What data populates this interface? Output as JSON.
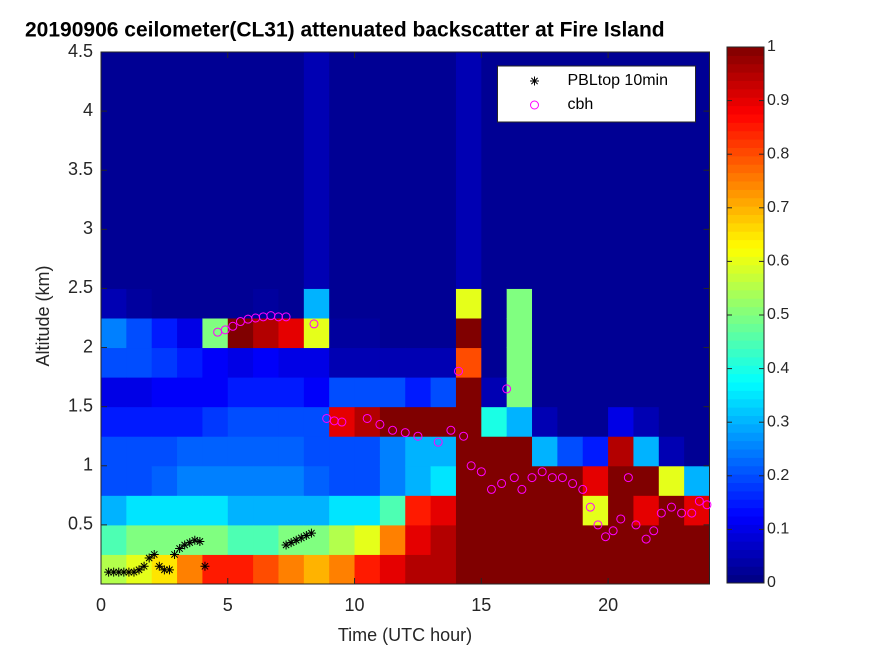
{
  "chart_data": {
    "type": "heatmap",
    "title": "20190906 ceilometer(CL31) attenuated backscatter at Fire Island",
    "x_label": "Time (UTC hour)",
    "y_label": "Altitude (km)",
    "xlim": [
      0,
      24
    ],
    "ylim": [
      0,
      4.5
    ],
    "xticks": [
      0,
      5,
      10,
      15,
      20
    ],
    "yticks": [
      0.5,
      1,
      1.5,
      2,
      2.5,
      3,
      3.5,
      4,
      4.5
    ],
    "colormap": "jet",
    "clim": [
      0,
      1
    ],
    "cticks": [
      0,
      0.1,
      0.2,
      0.3,
      0.4,
      0.5,
      0.6,
      0.7,
      0.8,
      0.9,
      1
    ],
    "x_edges": [
      0,
      1,
      2,
      3,
      4,
      5,
      6,
      7,
      8,
      9,
      10,
      11,
      12,
      13,
      14,
      15,
      16,
      17,
      18,
      19,
      20,
      21,
      22,
      23,
      24
    ],
    "y_edges": [
      0,
      0.25,
      0.5,
      0.75,
      1,
      1.25,
      1.5,
      1.75,
      2,
      2.25,
      2.5,
      4.5
    ],
    "z": [
      [
        0.55,
        0.45,
        0.3,
        0.2,
        0.2,
        0.15,
        0.1,
        0.2,
        0.25,
        0.05,
        0.02
      ],
      [
        0.6,
        0.5,
        0.35,
        0.2,
        0.2,
        0.15,
        0.1,
        0.2,
        0.2,
        0.03,
        0.02
      ],
      [
        0.65,
        0.5,
        0.35,
        0.22,
        0.2,
        0.15,
        0.12,
        0.18,
        0.15,
        0.02,
        0.02
      ],
      [
        0.75,
        0.5,
        0.35,
        0.25,
        0.22,
        0.15,
        0.12,
        0.15,
        0.1,
        0.02,
        0.02
      ],
      [
        0.85,
        0.5,
        0.35,
        0.25,
        0.22,
        0.18,
        0.12,
        0.12,
        0.5,
        0.02,
        0.02
      ],
      [
        0.85,
        0.45,
        0.3,
        0.25,
        0.22,
        0.2,
        0.15,
        0.1,
        1,
        0.02,
        0.02
      ],
      [
        0.8,
        0.45,
        0.3,
        0.25,
        0.22,
        0.2,
        0.15,
        0.12,
        0.95,
        0.03,
        0.02
      ],
      [
        0.75,
        0.5,
        0.3,
        0.25,
        0.22,
        0.2,
        0.15,
        0.1,
        0.9,
        0.02,
        0.02
      ],
      [
        0.7,
        0.5,
        0.3,
        0.22,
        0.2,
        0.2,
        0.12,
        0.1,
        0.6,
        0.3,
        0.05
      ],
      [
        0.75,
        0.55,
        0.35,
        0.2,
        0.2,
        0.9,
        0.2,
        0.05,
        0.03,
        0.02,
        0.02
      ],
      [
        0.85,
        0.6,
        0.35,
        0.2,
        0.2,
        0.95,
        0.2,
        0.05,
        0.03,
        0.02,
        0.02
      ],
      [
        0.9,
        0.75,
        0.45,
        0.25,
        0.25,
        1,
        0.2,
        0.05,
        0.02,
        0.02,
        0.02
      ],
      [
        0.95,
        0.9,
        0.85,
        0.3,
        0.3,
        1,
        0.15,
        0.05,
        0.02,
        0.02,
        0.02
      ],
      [
        0.95,
        0.95,
        0.9,
        0.35,
        0.3,
        1,
        0.2,
        0.05,
        0.02,
        0.02,
        0.02
      ],
      [
        1,
        1,
        1,
        1,
        1,
        1,
        1,
        0.8,
        1,
        0.6,
        0.05
      ],
      [
        1,
        1,
        1,
        1,
        1,
        0.4,
        0.05,
        0.02,
        0.02,
        0.02,
        0.02
      ],
      [
        1,
        1,
        1,
        1,
        1,
        0.3,
        0.5,
        0.5,
        0.5,
        0.5,
        0.02
      ],
      [
        1,
        1,
        1,
        1,
        0.3,
        0.05,
        0.02,
        0.02,
        0.02,
        0.02,
        0.02
      ],
      [
        1,
        1,
        1,
        1,
        0.2,
        0.02,
        0.02,
        0.02,
        0.02,
        0.02,
        0.02
      ],
      [
        1,
        1,
        0.6,
        0.9,
        0.15,
        0.02,
        0.02,
        0.02,
        0.02,
        0.02,
        0.02
      ],
      [
        1,
        1,
        1,
        1,
        0.95,
        0.1,
        0.02,
        0.02,
        0.02,
        0.02,
        0.02
      ],
      [
        1,
        1,
        0.9,
        1,
        0.3,
        0.05,
        0.02,
        0.02,
        0.02,
        0.02,
        0.02
      ],
      [
        1,
        1,
        1,
        0.6,
        0.05,
        0.02,
        0.02,
        0.02,
        0.02,
        0.02,
        0.02
      ],
      [
        1,
        1,
        0.9,
        0.3,
        0.02,
        0.02,
        0.02,
        0.02,
        0.02,
        0.02,
        0.02
      ]
    ],
    "legend": "upper right",
    "series": [
      {
        "name": "PBLtop 10min",
        "color": "#000000",
        "marker": "asterisk",
        "x": [
          0.3,
          0.5,
          0.7,
          0.9,
          1.1,
          1.3,
          1.5,
          1.7,
          1.9,
          2.1,
          2.3,
          2.5,
          2.7,
          2.9,
          3.1,
          3.3,
          3.5,
          3.7,
          3.9,
          4.1,
          7.3,
          7.5,
          7.7,
          7.9,
          8.1,
          8.3
        ],
        "y": [
          0.1,
          0.1,
          0.1,
          0.1,
          0.1,
          0.1,
          0.12,
          0.15,
          0.22,
          0.25,
          0.15,
          0.12,
          0.12,
          0.25,
          0.3,
          0.33,
          0.35,
          0.37,
          0.36,
          0.15,
          0.33,
          0.35,
          0.37,
          0.39,
          0.41,
          0.43
        ]
      },
      {
        "name": "cbh",
        "color": "#ff00ff",
        "marker": "circle",
        "x": [
          4.6,
          4.9,
          5.2,
          5.5,
          5.8,
          6.1,
          6.4,
          6.7,
          7,
          7.3,
          8.4,
          8.9,
          9.2,
          9.5,
          10.5,
          11,
          11.5,
          12,
          12.5,
          13.3,
          13.8,
          14.1,
          14.3,
          14.6,
          15,
          15.4,
          15.8,
          16,
          16.3,
          16.6,
          17,
          17.4,
          17.8,
          18.2,
          18.6,
          19,
          19.3,
          19.6,
          19.9,
          20.2,
          20.5,
          20.8,
          21.1,
          21.5,
          21.8,
          22.1,
          22.5,
          22.9,
          23.3,
          23.6,
          23.9
        ],
        "y": [
          2.13,
          2.15,
          2.18,
          2.22,
          2.24,
          2.25,
          2.26,
          2.27,
          2.26,
          2.26,
          2.2,
          1.4,
          1.38,
          1.37,
          1.4,
          1.35,
          1.3,
          1.28,
          1.25,
          1.2,
          1.3,
          1.8,
          1.25,
          1,
          0.95,
          0.8,
          0.85,
          1.65,
          0.9,
          0.8,
          0.9,
          0.95,
          0.9,
          0.9,
          0.85,
          0.8,
          0.65,
          0.5,
          0.4,
          0.45,
          0.55,
          0.9,
          0.5,
          0.38,
          0.45,
          0.6,
          0.65,
          0.6,
          0.6,
          0.7,
          0.67
        ]
      }
    ]
  }
}
